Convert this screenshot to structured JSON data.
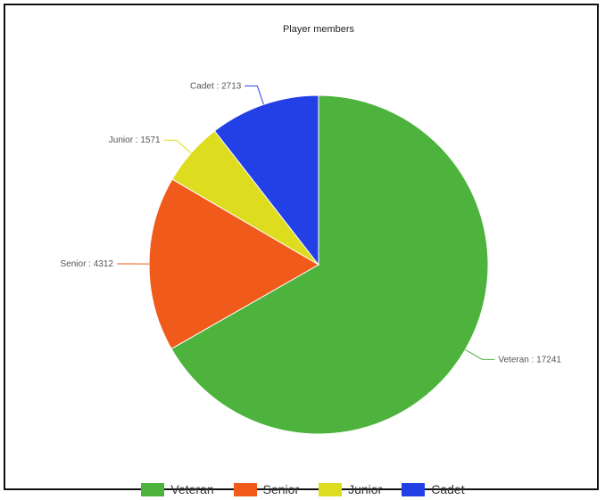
{
  "chart_data": {
    "type": "pie",
    "title": "Player members",
    "slices": [
      {
        "name": "Veteran",
        "label": "Veteran : 17241",
        "value": 17241,
        "color": "#4db33d"
      },
      {
        "name": "Senior",
        "label": "Senior : 4312",
        "value": 4312,
        "color": "#f05a1a"
      },
      {
        "name": "Junior",
        "label": "Junior : 1571",
        "value": 1571,
        "color": "#dedc1e"
      },
      {
        "name": "Cadet",
        "label": "Cadet : 2713",
        "value": 2713,
        "color": "#2340e6"
      }
    ],
    "legend_position": "bottom"
  }
}
